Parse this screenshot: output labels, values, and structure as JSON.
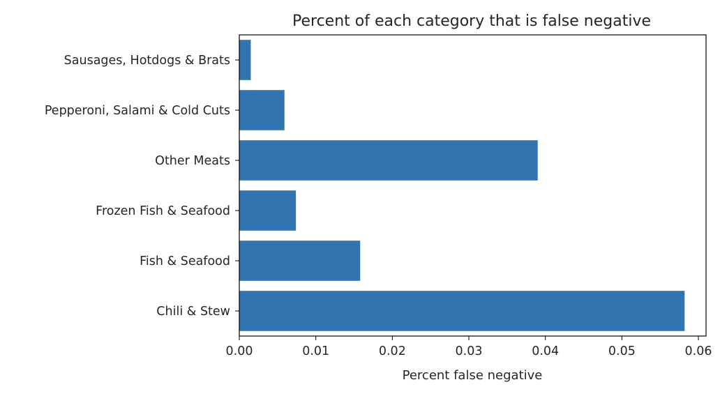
{
  "chart_data": {
    "type": "bar",
    "orientation": "horizontal",
    "title": "Percent of each category that is false negative",
    "xlabel": "Percent false negative",
    "ylabel": "",
    "categories": [
      "Chili & Stew",
      "Fish & Seafood",
      "Frozen Fish & Seafood",
      "Other Meats",
      "Pepperoni, Salami & Cold Cuts",
      "Sausages, Hotdogs & Brats"
    ],
    "values": [
      0.0582,
      0.0158,
      0.0074,
      0.039,
      0.0059,
      0.0015
    ],
    "xlim": [
      0,
      0.061
    ],
    "xticks": [
      0.0,
      0.01,
      0.02,
      0.03,
      0.04,
      0.05,
      0.06
    ],
    "xtick_labels": [
      "0.00",
      "0.01",
      "0.02",
      "0.03",
      "0.04",
      "0.05",
      "0.06"
    ],
    "grid": false,
    "legend": "none",
    "bar_color": "#3274b0"
  }
}
